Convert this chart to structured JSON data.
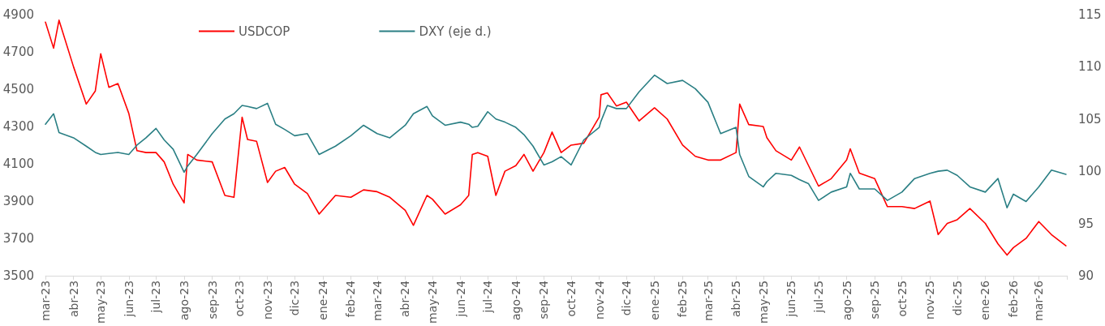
{
  "chart_data": {
    "type": "line",
    "x": [
      "2023-03-01",
      "2023-03-10",
      "2023-03-16",
      "2023-04-01",
      "2023-04-15",
      "2023-04-25",
      "2023-05-01",
      "2023-05-10",
      "2023-05-20",
      "2023-06-01",
      "2023-06-10",
      "2023-06-20",
      "2023-07-01",
      "2023-07-10",
      "2023-07-20",
      "2023-08-01",
      "2023-08-05",
      "2023-08-15",
      "2023-09-01",
      "2023-09-15",
      "2023-09-25",
      "2023-10-04",
      "2023-10-10",
      "2023-10-20",
      "2023-11-01",
      "2023-11-10",
      "2023-11-20",
      "2023-12-01",
      "2023-12-15",
      "2023-12-28",
      "2024-01-15",
      "2024-02-01",
      "2024-02-15",
      "2024-03-01",
      "2024-03-15",
      "2024-04-01",
      "2024-04-10",
      "2024-04-25",
      "2024-05-01",
      "2024-05-15",
      "2024-06-01",
      "2024-06-10",
      "2024-06-14",
      "2024-06-20",
      "2024-07-01",
      "2024-07-10",
      "2024-07-20",
      "2024-08-01",
      "2024-08-10",
      "2024-08-20",
      "2024-09-01",
      "2024-09-10",
      "2024-09-20",
      "2024-10-01",
      "2024-10-15",
      "2024-11-01",
      "2024-11-03",
      "2024-11-10",
      "2024-11-20",
      "2024-12-01",
      "2024-12-15",
      "2025-01-01",
      "2025-01-15",
      "2025-02-01",
      "2025-02-15",
      "2025-03-01",
      "2025-03-15",
      "2025-04-01",
      "2025-04-05",
      "2025-04-15",
      "2025-05-01",
      "2025-05-05",
      "2025-05-15",
      "2025-06-01",
      "2025-06-10",
      "2025-06-20",
      "2025-07-01",
      "2025-07-15",
      "2025-08-01",
      "2025-08-05",
      "2025-08-15",
      "2025-09-01",
      "2025-09-15",
      "2025-10-01",
      "2025-10-15",
      "2025-11-01",
      "2025-11-10",
      "2025-11-20",
      "2025-12-01",
      "2025-12-15",
      "2026-01-01",
      "2026-01-15",
      "2026-01-25",
      "2026-02-01",
      "2026-02-15",
      "2026-03-01",
      "2026-03-15",
      "2026-03-31"
    ],
    "series": [
      {
        "name": "USDCOP",
        "color": "#ff0000",
        "values": [
          4860,
          4720,
          4870,
          4620,
          4420,
          4490,
          4690,
          4510,
          4530,
          4370,
          4170,
          4160,
          4160,
          4110,
          3990,
          3890,
          4150,
          4120,
          4110,
          3930,
          3920,
          4350,
          4230,
          4220,
          4000,
          4060,
          4080,
          3990,
          3940,
          3830,
          3930,
          3920,
          3960,
          3950,
          3920,
          3850,
          3770,
          3930,
          3910,
          3830,
          3880,
          3930,
          4150,
          4160,
          4140,
          3930,
          4060,
          4090,
          4150,
          4060,
          4160,
          4270,
          4160,
          4200,
          4210,
          4350,
          4470,
          4480,
          4410,
          4430,
          4330,
          4400,
          4340,
          4200,
          4140,
          4120,
          4120,
          4160,
          4420,
          4310,
          4300,
          4240,
          4170,
          4120,
          4190,
          4090,
          3980,
          4020,
          4120,
          4180,
          4050,
          4020,
          3870,
          3870,
          3860,
          3900,
          3720,
          3780,
          3800,
          3860,
          3780,
          3670,
          3610,
          3650,
          3700,
          3790,
          3720,
          3660
        ]
      },
      {
        "name": "DXY (eje d.)",
        "color": "#2a7f84",
        "axis": "y2",
        "values": [
          104.5,
          105.5,
          103.7,
          103.2,
          102.4,
          101.8,
          101.6,
          101.7,
          101.8,
          101.6,
          102.5,
          103.2,
          104.1,
          103.0,
          102.1,
          99.9,
          100.5,
          101.6,
          103.6,
          105.0,
          105.5,
          106.3,
          106.2,
          106.0,
          106.5,
          104.5,
          104.0,
          103.4,
          103.6,
          101.6,
          102.4,
          103.4,
          104.4,
          103.6,
          103.2,
          104.4,
          105.5,
          106.2,
          105.3,
          104.4,
          104.7,
          104.5,
          104.2,
          104.3,
          105.7,
          105.0,
          104.7,
          104.2,
          103.5,
          102.4,
          100.6,
          100.9,
          101.4,
          100.6,
          103.0,
          104.2,
          104.8,
          106.3,
          106.0,
          106.0,
          107.6,
          109.2,
          108.4,
          108.7,
          107.9,
          106.6,
          103.6,
          104.2,
          101.6,
          99.5,
          98.5,
          99.0,
          99.8,
          99.6,
          99.2,
          98.8,
          97.2,
          98.0,
          98.5,
          99.8,
          98.3,
          98.3,
          97.2,
          98.0,
          99.3,
          99.8,
          100.0,
          100.1,
          99.6,
          98.5,
          98.0,
          99.3,
          96.5,
          97.8,
          97.1,
          98.5,
          100.1,
          99.7
        ]
      }
    ],
    "ylim": [
      3500,
      4900
    ],
    "yticks": [
      3500,
      3700,
      3900,
      4100,
      4300,
      4500,
      4700,
      4900
    ],
    "y2lim": [
      90,
      115
    ],
    "y2ticks": [
      90,
      95,
      100,
      105,
      110,
      115
    ],
    "xlim": [
      "2023-03-01",
      "2026-04-01"
    ],
    "xticks": [
      {
        "value": "2023-03-01",
        "label": "mar-23"
      },
      {
        "value": "2023-04-01",
        "label": "abr-23"
      },
      {
        "value": "2023-05-01",
        "label": "may-23"
      },
      {
        "value": "2023-06-01",
        "label": "jun-23"
      },
      {
        "value": "2023-07-01",
        "label": "jul-23"
      },
      {
        "value": "2023-08-01",
        "label": "ago-23"
      },
      {
        "value": "2023-09-01",
        "label": "sep-23"
      },
      {
        "value": "2023-10-01",
        "label": "oct-23"
      },
      {
        "value": "2023-11-01",
        "label": "nov-23"
      },
      {
        "value": "2023-12-01",
        "label": "dic-23"
      },
      {
        "value": "2024-01-01",
        "label": "ene-24"
      },
      {
        "value": "2024-02-01",
        "label": "feb-24"
      },
      {
        "value": "2024-03-01",
        "label": "mar-24"
      },
      {
        "value": "2024-04-01",
        "label": "abr-24"
      },
      {
        "value": "2024-05-01",
        "label": "may-24"
      },
      {
        "value": "2024-06-01",
        "label": "jun-24"
      },
      {
        "value": "2024-07-01",
        "label": "jul-24"
      },
      {
        "value": "2024-08-01",
        "label": "ago-24"
      },
      {
        "value": "2024-09-01",
        "label": "sep-24"
      },
      {
        "value": "2024-10-01",
        "label": "oct-24"
      },
      {
        "value": "2024-11-01",
        "label": "nov-24"
      },
      {
        "value": "2024-12-01",
        "label": "dic-24"
      },
      {
        "value": "2025-01-01",
        "label": "ene-25"
      },
      {
        "value": "2025-02-01",
        "label": "feb-25"
      },
      {
        "value": "2025-03-01",
        "label": "mar-25"
      },
      {
        "value": "2025-04-01",
        "label": "abr-25"
      },
      {
        "value": "2025-05-01",
        "label": "may-25"
      },
      {
        "value": "2025-06-01",
        "label": "jun-25"
      },
      {
        "value": "2025-07-01",
        "label": "jul-25"
      },
      {
        "value": "2025-08-01",
        "label": "ago-25"
      },
      {
        "value": "2025-09-01",
        "label": "sep-25"
      },
      {
        "value": "2025-10-01",
        "label": "oct-25"
      },
      {
        "value": "2025-11-01",
        "label": "nov-25"
      },
      {
        "value": "2025-12-01",
        "label": "dic-25"
      },
      {
        "value": "2026-01-01",
        "label": "ene-26"
      },
      {
        "value": "2026-02-01",
        "label": "feb-26"
      },
      {
        "value": "2026-03-01",
        "label": "mar-26"
      },
      {
        "value": "2026-04-01",
        "label": null
      }
    ],
    "legend": "top",
    "grid": false,
    "marker": "none",
    "line_style": "solid"
  }
}
